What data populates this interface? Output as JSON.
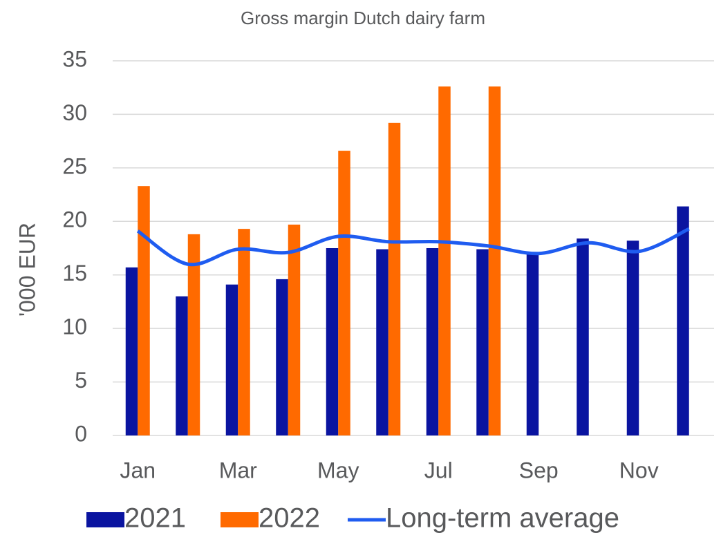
{
  "chart_data": {
    "type": "bar_line",
    "title": "Gross margin Dutch dairy farm",
    "ylabel": "'000 EUR",
    "categories": [
      "Jan",
      null,
      "Mar",
      null,
      "May",
      null,
      "Jul",
      null,
      "Sep",
      null,
      "Nov",
      null
    ],
    "series": [
      {
        "name": "2021",
        "color": "#0a14a0",
        "type": "bar",
        "values": [
          15.7,
          13.0,
          14.1,
          14.6,
          17.5,
          17.4,
          17.5,
          17.4,
          17.0,
          18.4,
          18.2,
          21.4
        ]
      },
      {
        "name": "2022",
        "color": "#ff6a00",
        "type": "bar",
        "values": [
          23.3,
          18.8,
          19.3,
          19.7,
          26.6,
          29.2,
          32.6,
          32.6,
          null,
          null,
          null,
          null
        ]
      },
      {
        "name": "Long-term average",
        "color": "#1f5cf0",
        "type": "line",
        "values": [
          19.1,
          16.0,
          17.4,
          17.1,
          18.6,
          18.1,
          18.1,
          17.7,
          17.0,
          18.0,
          17.2,
          19.3
        ]
      }
    ],
    "ylim": [
      0,
      35
    ],
    "yticks": [
      0,
      5,
      10,
      15,
      20,
      25,
      30,
      35
    ],
    "grid": true,
    "legend": "bottom"
  }
}
